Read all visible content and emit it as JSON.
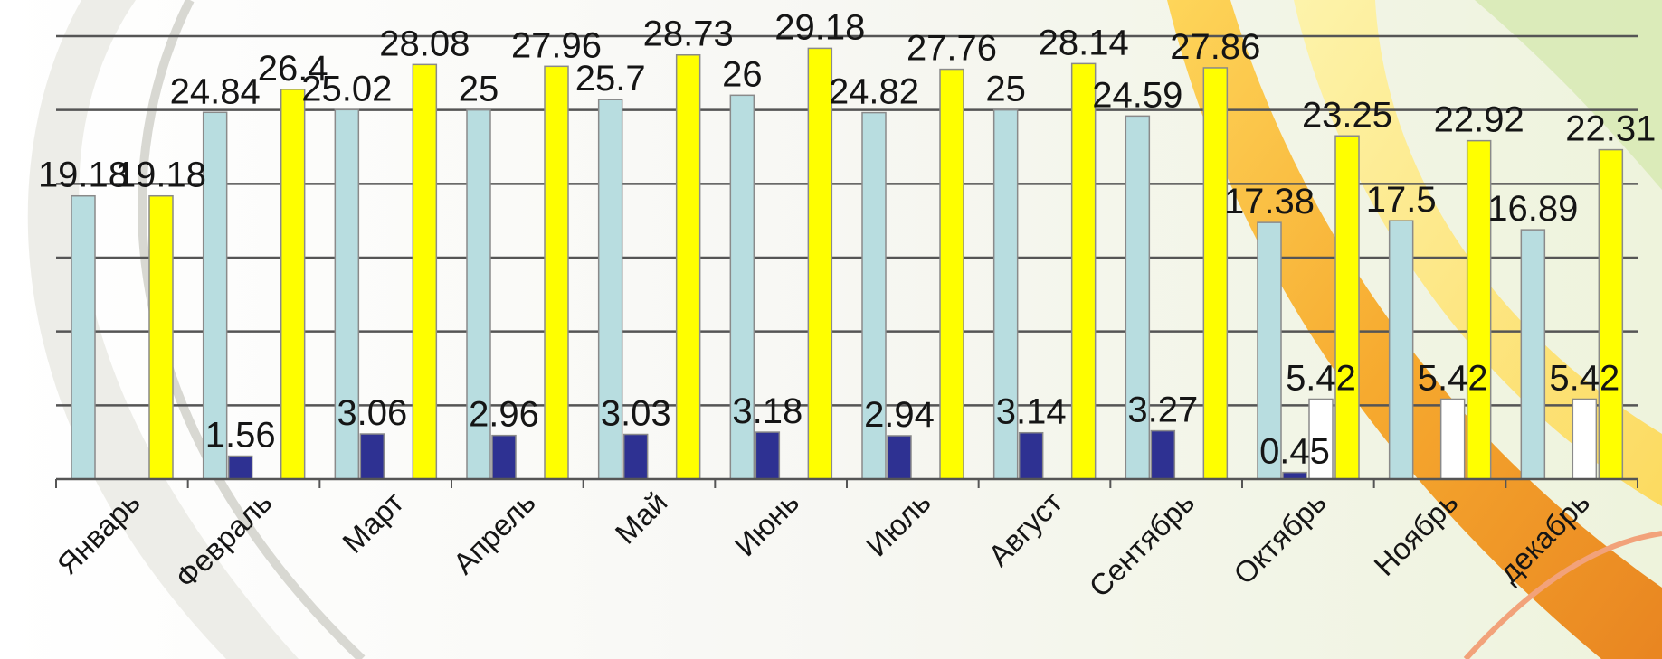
{
  "chart_data": {
    "type": "bar",
    "title": "",
    "xlabel": "",
    "ylabel": "",
    "ylim": [
      0,
      30
    ],
    "grid": true,
    "legend": "none",
    "categories": [
      "Январь",
      "Февраль",
      "Март",
      "Апрель",
      "Май",
      "Июнь",
      "Июль",
      "Август",
      "Сентябрь",
      "Октябрь",
      "Ноябрь",
      "декабрь"
    ],
    "series": [
      {
        "color": "#b8dde0",
        "values": [
          19.18,
          24.84,
          25.02,
          25,
          25.7,
          26,
          24.82,
          25,
          24.59,
          17.38,
          17.5,
          16.89
        ],
        "labels": [
          "19.18",
          "24.84",
          "25.02",
          "25",
          "25.7",
          "26",
          "24.82",
          "25",
          "24.59",
          "17.38",
          "17.5",
          "16.89"
        ]
      },
      {
        "color": "#2e3192",
        "values": [
          0,
          1.56,
          3.06,
          2.96,
          3.03,
          3.18,
          2.94,
          3.14,
          3.27,
          0.45,
          null,
          null
        ],
        "labels": [
          null,
          "1.56",
          "3.06",
          "2.96",
          "3.03",
          "3.18",
          "2.94",
          "3.14",
          "3.27",
          "0.45",
          null,
          null
        ]
      },
      {
        "color": "#ffffff",
        "values": [
          null,
          null,
          null,
          null,
          null,
          null,
          null,
          null,
          null,
          5.42,
          5.42,
          5.42
        ],
        "labels": [
          null,
          null,
          null,
          null,
          null,
          null,
          null,
          null,
          null,
          "5.42",
          "5.42",
          "5.42"
        ]
      },
      {
        "color": "#ffff00",
        "values": [
          19.18,
          26.4,
          28.08,
          27.96,
          28.73,
          29.18,
          27.76,
          28.14,
          27.86,
          23.25,
          22.92,
          22.31
        ],
        "labels": [
          "19.18",
          "26.4",
          "28.08",
          "27.96",
          "28.73",
          "29.18",
          "27.76",
          "28.14",
          "27.86",
          "23.25",
          "22.92",
          "22.31"
        ]
      }
    ]
  },
  "colors": {
    "grid": "#555555",
    "axis": "#555555",
    "bar_stroke": "#8a8a8a"
  }
}
